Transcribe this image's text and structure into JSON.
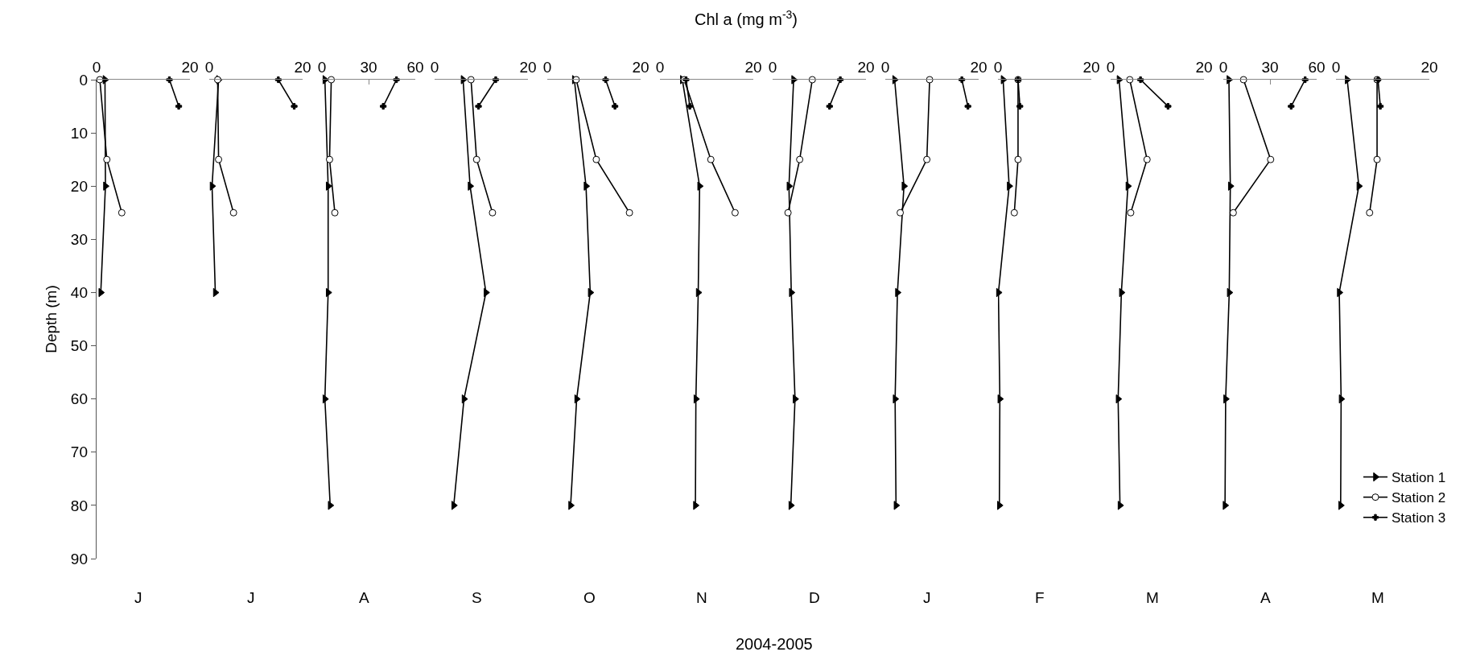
{
  "chart_data": [
    {
      "type": "line",
      "ylabel": "Depth (m)",
      "xlabel": "J",
      "xlim": [
        0,
        20
      ],
      "xticks": [
        0,
        20
      ],
      "ylim": [
        90,
        0
      ],
      "yticks": [
        0,
        10,
        20,
        30,
        40,
        50,
        60,
        70,
        80,
        90
      ],
      "series": [
        {
          "color": "#000000",
          "marker": "triangle",
          "x": [
            1.8,
            1.9,
            0.9
          ],
          "values": [
            0,
            20,
            40
          ]
        },
        {
          "color": "#ffffff",
          "marker": "circle",
          "x": [
            0.7,
            2.2,
            5.4
          ],
          "values": [
            0,
            15,
            25
          ]
        },
        {
          "color": "#000000",
          "marker": "cross",
          "x": [
            15.6,
            17.6
          ],
          "values": [
            0,
            5
          ]
        }
      ]
    },
    {
      "type": "line",
      "xlabel": "J",
      "xlim": [
        0,
        20
      ],
      "xticks": [
        0,
        20
      ],
      "ylim": [
        90,
        0
      ],
      "yticks": [
        0,
        10,
        20,
        30,
        40,
        50,
        60,
        70,
        80,
        90
      ],
      "tick_labels": "x",
      "series": [
        {
          "color": "#000000",
          "marker": "triangle",
          "x": [
            2.0,
            0.6,
            1.3
          ],
          "values": [
            0,
            20,
            40
          ]
        },
        {
          "color": "#ffffff",
          "marker": "circle",
          "x": [
            1.8,
            2.0,
            5.2
          ],
          "values": [
            0,
            15,
            25
          ]
        },
        {
          "color": "#000000",
          "marker": "cross",
          "x": [
            14.8,
            18.2
          ],
          "values": [
            0,
            5
          ]
        }
      ]
    },
    {
      "type": "line",
      "xlabel": "A",
      "xlim": [
        0,
        60
      ],
      "xticks": [
        0,
        30,
        60
      ],
      "ylim": [
        90,
        0
      ],
      "yticks": [
        0,
        10,
        20,
        30,
        40,
        50,
        60,
        70,
        80,
        90
      ],
      "tick_labels": "x",
      "series": [
        {
          "color": "#000000",
          "marker": "triangle",
          "x": [
            1.9,
            4.0,
            4.0,
            1.9,
            5.3
          ],
          "values": [
            0,
            20,
            40,
            60,
            80
          ]
        },
        {
          "color": "#ffffff",
          "marker": "circle",
          "x": [
            6.0,
            4.9,
            8.3
          ],
          "values": [
            0,
            15,
            25
          ]
        },
        {
          "color": "#000000",
          "marker": "cross",
          "x": [
            47.9,
            39.4
          ],
          "values": [
            0,
            5
          ]
        }
      ]
    },
    {
      "type": "line",
      "xlabel": "S",
      "xlim": [
        0,
        20
      ],
      "xticks": [
        0,
        20
      ],
      "ylim": [
        90,
        0
      ],
      "yticks": [
        0,
        10,
        20,
        30,
        40,
        50,
        60,
        70,
        80,
        90
      ],
      "tick_labels": "x",
      "series": [
        {
          "color": "#000000",
          "marker": "triangle",
          "x": [
            6.1,
            7.6,
            11.0,
            6.3,
            4.1
          ],
          "values": [
            0,
            20,
            40,
            60,
            80
          ]
        },
        {
          "color": "#ffffff",
          "marker": "circle",
          "x": [
            7.8,
            9.0,
            12.4
          ],
          "values": [
            0,
            15,
            25
          ]
        },
        {
          "color": "#000000",
          "marker": "cross",
          "x": [
            13.1,
            9.4
          ],
          "values": [
            0,
            5
          ]
        }
      ]
    },
    {
      "type": "line",
      "xlabel": "O",
      "xlim": [
        0,
        20
      ],
      "xticks": [
        0,
        20
      ],
      "ylim": [
        90,
        0
      ],
      "yticks": [
        0,
        10,
        20,
        30,
        40,
        50,
        60,
        70,
        80,
        90
      ],
      "tick_labels": "x",
      "series": [
        {
          "color": "#000000",
          "marker": "triangle",
          "x": [
            5.8,
            8.3,
            9.2,
            6.3,
            5.0
          ],
          "values": [
            0,
            20,
            40,
            60,
            80
          ]
        },
        {
          "color": "#ffffff",
          "marker": "circle",
          "x": [
            6.2,
            10.5,
            17.6
          ],
          "values": [
            0,
            15,
            25
          ]
        },
        {
          "color": "#000000",
          "marker": "cross",
          "x": [
            12.5,
            14.5
          ],
          "values": [
            0,
            5
          ]
        }
      ]
    },
    {
      "type": "line",
      "title": "Chl a (mg m$^{-3}$)",
      "annotations": [
        "2004-2005"
      ],
      "xlabel": "N",
      "xlim": [
        0,
        20
      ],
      "xticks": [
        0,
        20
      ],
      "ylim": [
        90,
        0
      ],
      "yticks": [
        0,
        10,
        20,
        30,
        40,
        50,
        60,
        70,
        80,
        90
      ],
      "tick_labels": "x",
      "series": [
        {
          "color": "#000000",
          "marker": "triangle",
          "x": [
            4.8,
            8.5,
            8.2,
            7.7,
            7.6
          ],
          "values": [
            0,
            20,
            40,
            60,
            80
          ]
        },
        {
          "color": "#ffffff",
          "marker": "circle",
          "x": [
            5.2,
            10.9,
            16.1
          ],
          "values": [
            0,
            15,
            25
          ]
        },
        {
          "color": "#000000",
          "marker": "cross",
          "x": [
            5.6,
            6.4
          ],
          "values": [
            0,
            5
          ]
        }
      ]
    },
    {
      "type": "line",
      "xlabel": "D",
      "xlim": [
        0,
        20
      ],
      "xticks": [
        0,
        20
      ],
      "ylim": [
        90,
        0
      ],
      "yticks": [
        0,
        10,
        20,
        30,
        40,
        50,
        60,
        70,
        80,
        90
      ],
      "tick_labels": "x",
      "series": [
        {
          "color": "#000000",
          "marker": "triangle",
          "x": [
            4.5,
            3.5,
            4.0,
            4.8,
            3.9
          ],
          "values": [
            0,
            20,
            40,
            60,
            80
          ]
        },
        {
          "color": "#ffffff",
          "marker": "circle",
          "x": [
            8.5,
            5.8,
            3.3
          ],
          "values": [
            0,
            15,
            25
          ]
        },
        {
          "color": "#000000",
          "marker": "cross",
          "x": [
            14.5,
            12.2
          ],
          "values": [
            0,
            5
          ]
        }
      ]
    },
    {
      "type": "line",
      "xlabel": "J",
      "xlim": [
        0,
        20
      ],
      "xticks": [
        0,
        20
      ],
      "ylim": [
        90,
        0
      ],
      "yticks": [
        0,
        10,
        20,
        30,
        40,
        50,
        60,
        70,
        80,
        90
      ],
      "tick_labels": "x",
      "series": [
        {
          "color": "#000000",
          "marker": "triangle",
          "x": [
            2.0,
            4.0,
            2.6,
            2.1,
            2.3
          ],
          "values": [
            0,
            20,
            40,
            60,
            80
          ]
        },
        {
          "color": "#ffffff",
          "marker": "circle",
          "x": [
            9.5,
            8.9,
            3.2
          ],
          "values": [
            0,
            15,
            25
          ]
        },
        {
          "color": "#000000",
          "marker": "cross",
          "x": [
            16.4,
            17.7
          ],
          "values": [
            0,
            5
          ]
        }
      ]
    },
    {
      "type": "line",
      "xlabel": "F",
      "xlim": [
        0,
        20
      ],
      "xticks": [
        0,
        20
      ],
      "ylim": [
        90,
        0
      ],
      "yticks": [
        0,
        10,
        20,
        30,
        40,
        50,
        60,
        70,
        80,
        90
      ],
      "tick_labels": "x",
      "series": [
        {
          "color": "#000000",
          "marker": "triangle",
          "x": [
            1.1,
            2.4,
            0.1,
            0.4,
            0.3
          ],
          "values": [
            0,
            20,
            40,
            60,
            80
          ]
        },
        {
          "color": "#ffffff",
          "marker": "circle",
          "x": [
            4.3,
            4.3,
            3.5
          ],
          "values": [
            0,
            15,
            25
          ]
        },
        {
          "color": "#000000",
          "marker": "cross",
          "x": [
            4.3,
            4.7
          ],
          "values": [
            0,
            5
          ]
        }
      ]
    },
    {
      "type": "line",
      "xlabel": "M",
      "xlim": [
        0,
        20
      ],
      "xticks": [
        0,
        20
      ],
      "ylim": [
        90,
        0
      ],
      "yticks": [
        0,
        10,
        20,
        30,
        40,
        50,
        60,
        70,
        80,
        90
      ],
      "tick_labels": "x",
      "series": [
        {
          "color": "#000000",
          "marker": "triangle",
          "x": [
            1.8,
            3.7,
            2.3,
            1.6,
            2.0
          ],
          "values": [
            0,
            20,
            40,
            60,
            80
          ]
        },
        {
          "color": "#ffffff",
          "marker": "circle",
          "x": [
            4.1,
            7.8,
            4.3
          ],
          "values": [
            0,
            15,
            25
          ]
        },
        {
          "color": "#000000",
          "marker": "cross",
          "x": [
            6.4,
            12.3
          ],
          "values": [
            0,
            5
          ]
        }
      ]
    },
    {
      "type": "line",
      "xlabel": "A",
      "xlim": [
        0,
        60
      ],
      "xticks": [
        0,
        30,
        60
      ],
      "ylim": [
        90,
        0
      ],
      "yticks": [
        0,
        10,
        20,
        30,
        40,
        50,
        60,
        70,
        80,
        90
      ],
      "tick_labels": "x",
      "series": [
        {
          "color": "#000000",
          "marker": "triangle",
          "x": [
            3.6,
            4.5,
            3.8,
            1.5,
            1.1
          ],
          "values": [
            0,
            20,
            40,
            60,
            80
          ]
        },
        {
          "color": "#ffffff",
          "marker": "circle",
          "x": [
            13.0,
            30.4,
            6.4
          ],
          "values": [
            0,
            15,
            25
          ]
        },
        {
          "color": "#000000",
          "marker": "cross",
          "x": [
            52.6,
            43.6
          ],
          "values": [
            0,
            5
          ]
        }
      ]
    },
    {
      "type": "line",
      "xlabel": "M",
      "xlim": [
        0,
        20
      ],
      "xticks": [
        0,
        20
      ],
      "ylim": [
        90,
        0
      ],
      "yticks": [
        0,
        10,
        20,
        30,
        40,
        50,
        60,
        70,
        80,
        90
      ],
      "tick_labels": "x",
      "legend": "bottom right",
      "series": [
        {
          "name": "Station 1",
          "color": "#000000",
          "marker": "triangle",
          "x": [
            2.4,
            4.9,
            0.7,
            1.1,
            1.0
          ],
          "values": [
            0,
            20,
            40,
            60,
            80
          ]
        },
        {
          "name": "Station 2",
          "color": "#ffffff",
          "marker": "circle",
          "x": [
            8.8,
            8.8,
            7.2
          ],
          "values": [
            0,
            15,
            25
          ]
        },
        {
          "name": "Station 3",
          "color": "#000000",
          "marker": "cross",
          "x": [
            9.0,
            9.5
          ],
          "values": [
            0,
            5
          ]
        }
      ]
    }
  ]
}
